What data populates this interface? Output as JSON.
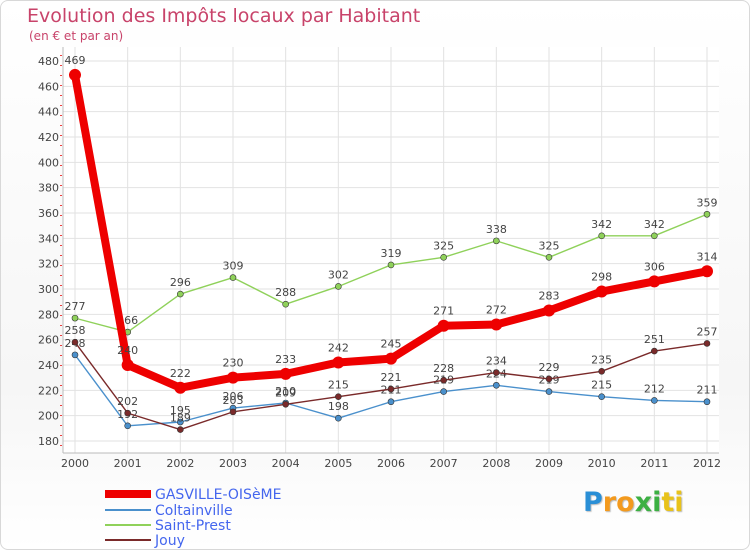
{
  "chart_data": {
    "type": "line",
    "title": "Evolution des Impôts locaux par Habitant",
    "subtitle": "(en € et par an)",
    "xlabel": "",
    "ylabel": "",
    "categories": [
      "2000",
      "2001",
      "2002",
      "2003",
      "2004",
      "2005",
      "2006",
      "2007",
      "2008",
      "2009",
      "2010",
      "2011",
      "2012"
    ],
    "ylim": [
      180,
      480
    ],
    "yticks": [
      "180",
      "200",
      "220",
      "240",
      "260",
      "280",
      "300",
      "320",
      "340",
      "360",
      "380",
      "400",
      "420",
      "440",
      "460",
      "480"
    ],
    "grid": true,
    "series": [
      {
        "name": "Coltainville",
        "color": "#4a90cc",
        "values": [
          248,
          192,
          195,
          206,
          210,
          198,
          211,
          219,
          224,
          219,
          215,
          212,
          211
        ],
        "labels": [
          "248",
          "192",
          "195",
          "206",
          "210",
          "198",
          "211",
          "219",
          "224",
          "219",
          "215",
          "212",
          "211"
        ]
      },
      {
        "name": "Saint-Prest",
        "color": "#8fd15a",
        "values": [
          277,
          266,
          296,
          309,
          288,
          302,
          319,
          325,
          338,
          325,
          342,
          342,
          359
        ],
        "labels": [
          "277",
          "266",
          "296",
          "309",
          "288",
          "302",
          "319",
          "325",
          "338",
          "325",
          "342",
          "342",
          "359"
        ]
      },
      {
        "name": "Jouy",
        "color": "#7a2a2a",
        "values": [
          258,
          202,
          189,
          203,
          209,
          215,
          221,
          228,
          234,
          229,
          235,
          251,
          257
        ],
        "labels": [
          "258",
          "202",
          "189",
          "203",
          "209",
          "215",
          "221",
          "228",
          "234",
          "229",
          "235",
          "251",
          "257"
        ]
      },
      {
        "name": "GASVILLE-OISèME",
        "color": "#ee0000",
        "values": [
          469,
          240,
          222,
          230,
          233,
          242,
          245,
          271,
          272,
          283,
          298,
          306,
          314
        ],
        "labels": [
          "469",
          "240",
          "222",
          "230",
          "233",
          "242",
          "245",
          "271",
          "272",
          "283",
          "298",
          "306",
          "314"
        ]
      }
    ],
    "legend": [
      "GASVILLE-OISèME",
      "Coltainville",
      "Saint-Prest",
      "Jouy"
    ]
  },
  "brand": {
    "letters": [
      "P",
      "r",
      "o",
      "x",
      "i",
      "t",
      "i"
    ],
    "colors": [
      "#2a8fd6",
      "#f39a1e",
      "#f39a1e",
      "#3cb043",
      "#3cb043",
      "#e8c21a",
      "#e8c21a"
    ]
  }
}
